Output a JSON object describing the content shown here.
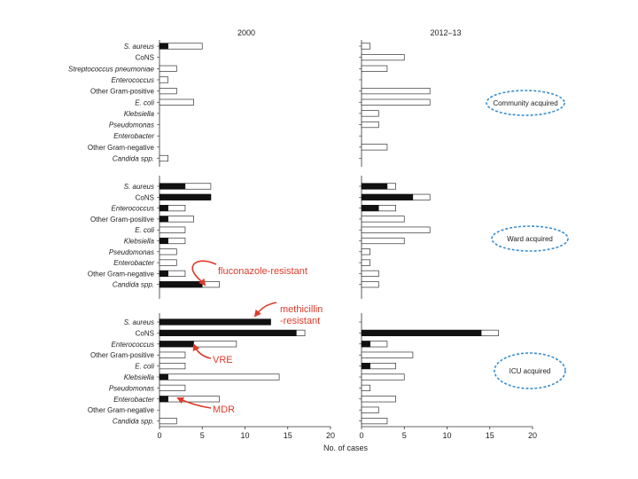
{
  "chart_data": {
    "type": "bar",
    "orientation": "horizontal",
    "stacked": true,
    "columns": [
      "2000",
      "2012–13"
    ],
    "xlabel": "No. of cases",
    "xlim": [
      0,
      20
    ],
    "xticks": [
      "0",
      "5",
      "10",
      "15",
      "20"
    ],
    "panels": [
      {
        "name": "Community acquired",
        "categories": [
          "S. aureus",
          "CoNS",
          "Streptococcus pneumoniae",
          "Enterococcus",
          "Other Gram-positive",
          "E. coli",
          "Klebsiella",
          "Pseudomonas",
          "Enterobacter",
          "Other Gram-negative",
          "Candida spp."
        ],
        "italic": [
          true,
          false,
          true,
          true,
          false,
          true,
          true,
          true,
          true,
          false,
          true
        ],
        "data": {
          "2000": {
            "resistant": [
              1,
              0,
              0,
              0,
              0,
              0,
              0,
              0,
              0,
              0,
              0
            ],
            "total": [
              5,
              0,
              2,
              1,
              2,
              4,
              0,
              0,
              0,
              0,
              1
            ]
          },
          "2012–13": {
            "resistant": [
              0,
              0,
              0,
              0,
              0,
              0,
              0,
              0,
              0,
              0,
              0
            ],
            "total": [
              1,
              5,
              3,
              0,
              8,
              8,
              2,
              2,
              0,
              3,
              0
            ]
          }
        }
      },
      {
        "name": "Ward acquired",
        "categories": [
          "S. aureus",
          "CoNS",
          "Enterococcus",
          "Other Gram-positive",
          "E. coli",
          "Klebsiella",
          "Pseudomonas",
          "Enterobacter",
          "Other Gram-negative",
          "Candida spp."
        ],
        "italic": [
          true,
          false,
          true,
          false,
          true,
          true,
          true,
          true,
          false,
          true
        ],
        "data": {
          "2000": {
            "resistant": [
              3,
              6,
              1,
              1,
              0,
              1,
              0,
              0,
              1,
              5
            ],
            "total": [
              6,
              6,
              3,
              4,
              3,
              3,
              2,
              2,
              3,
              7
            ]
          },
          "2012–13": {
            "resistant": [
              3,
              6,
              2,
              0,
              0,
              0,
              0,
              0,
              0,
              0
            ],
            "total": [
              4,
              8,
              4,
              5,
              8,
              5,
              1,
              1,
              2,
              2
            ]
          }
        }
      },
      {
        "name": "ICU acquired",
        "categories": [
          "S. aureus",
          "CoNS",
          "Enterococcus",
          "Other Gram-positive",
          "E. coli",
          "Klebsiella",
          "Pseudomonas",
          "Enterobacter",
          "Other Gram-negative",
          "Candida spp."
        ],
        "italic": [
          true,
          false,
          true,
          false,
          true,
          true,
          true,
          true,
          false,
          true
        ],
        "data": {
          "2000": {
            "resistant": [
              13,
              16,
              4,
              0,
              0,
              1,
              0,
              1,
              0,
              0
            ],
            "total": [
              13,
              17,
              9,
              3,
              3,
              14,
              3,
              7,
              0,
              2
            ]
          },
          "2012–13": {
            "resistant": [
              0,
              14,
              1,
              0,
              1,
              0,
              0,
              0,
              0,
              0
            ],
            "total": [
              0,
              16,
              3,
              6,
              4,
              5,
              1,
              4,
              2,
              3
            ]
          }
        }
      }
    ],
    "annotations": [
      {
        "text": "fluconazole-resistant",
        "panel": 1,
        "column": "2000"
      },
      {
        "text": "methicillin",
        "text2": "-resistant",
        "panel": 2,
        "column": "2000"
      },
      {
        "text": "VRE",
        "panel": 2,
        "column": "2000"
      },
      {
        "text": "MDR",
        "panel": 2,
        "column": "2000"
      }
    ],
    "colors": {
      "resistant": "#111111",
      "total": "#ffffff",
      "outline": "#333333",
      "annotation": "#e03a2a",
      "oval": "#3a8fd0"
    }
  }
}
